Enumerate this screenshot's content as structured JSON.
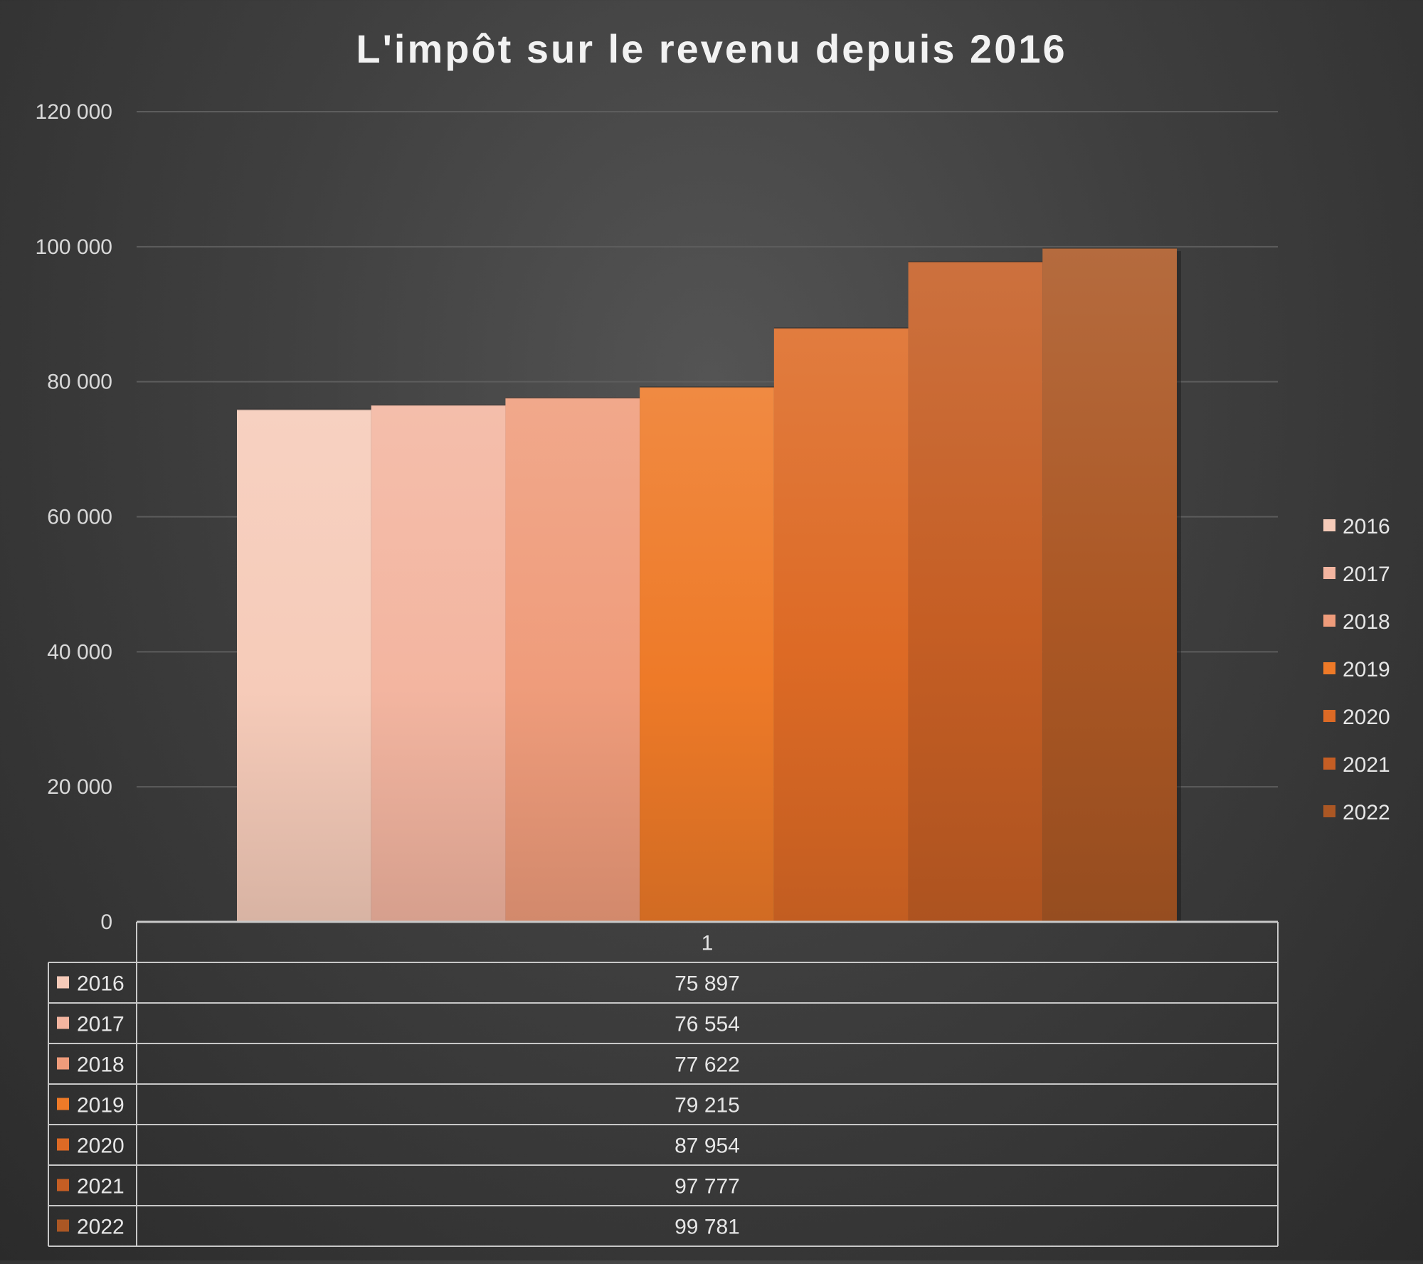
{
  "chart_data": {
    "type": "bar",
    "title": "L'impôt sur le revenu depuis 2016",
    "categories": [
      "1"
    ],
    "series": [
      {
        "name": "2016",
        "values": [
          75897
        ],
        "label": "75 897",
        "color": "#f6cbb9"
      },
      {
        "name": "2017",
        "values": [
          76554
        ],
        "label": "76 554",
        "color": "#f3b5a0"
      },
      {
        "name": "2018",
        "values": [
          77622
        ],
        "label": "77 622",
        "color": "#ef9c7b"
      },
      {
        "name": "2019",
        "values": [
          79215
        ],
        "label": "79 215",
        "color": "#ee7a28"
      },
      {
        "name": "2020",
        "values": [
          87954
        ],
        "label": "87 954",
        "color": "#dd6a25"
      },
      {
        "name": "2021",
        "values": [
          97777
        ],
        "label": "97 777",
        "color": "#c55e24"
      },
      {
        "name": "2022",
        "values": [
          99781
        ],
        "label": "99 781",
        "color": "#ab5724"
      }
    ],
    "ylim": [
      0,
      120000
    ],
    "yticks": [
      0,
      20000,
      40000,
      60000,
      80000,
      100000,
      120000
    ],
    "ytick_labels": [
      "0",
      "20 000",
      "40 000",
      "60 000",
      "80 000",
      "100 000",
      "120 000"
    ],
    "legend": "right",
    "data_table": true,
    "grid": true
  }
}
